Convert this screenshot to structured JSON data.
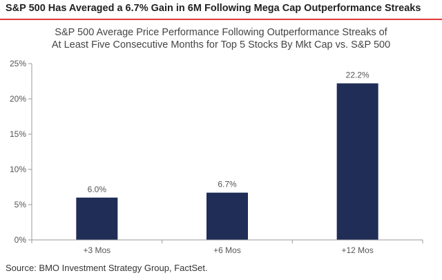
{
  "header": {
    "headline": "S&P 500 Has Averaged a 6.7% Gain in 6M Following Mega Cap Outperformance Streaks"
  },
  "footer": {
    "source": "Source: BMO Investment Strategy Group, FactSet."
  },
  "colors": {
    "accent_rule": "#e23636",
    "bar": "#1f2d57",
    "axis": "#999999"
  },
  "chart_data": {
    "type": "bar",
    "title_lines": [
      "S&P 500 Average Price Performance Following Outperformance Streaks of",
      "At Least Five Consecutive Months for Top 5 Stocks By Mkt Cap vs. S&P 500"
    ],
    "categories": [
      "+3 Mos",
      "+6 Mos",
      "+12 Mos"
    ],
    "values": [
      6.0,
      6.7,
      22.2
    ],
    "data_labels": [
      "6.0%",
      "6.7%",
      "22.2%"
    ],
    "ylim": [
      0,
      25
    ],
    "yticks": [
      0,
      5,
      10,
      15,
      20,
      25
    ],
    "ytick_labels": [
      "0%",
      "5%",
      "10%",
      "15%",
      "20%",
      "25%"
    ],
    "xlabel": "",
    "ylabel": "",
    "grid": false,
    "legend": "none"
  }
}
